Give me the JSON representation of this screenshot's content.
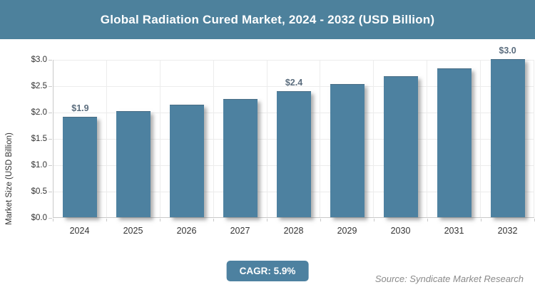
{
  "header": {
    "title": "Global Radiation Cured Market, 2024 - 2032 (USD Billion)"
  },
  "chart_data": {
    "type": "bar",
    "title": "Global Radiation Cured Market, 2024 - 2032 (USD Billion)",
    "categories": [
      "2024",
      "2025",
      "2026",
      "2027",
      "2028",
      "2029",
      "2030",
      "2031",
      "2032"
    ],
    "values": [
      1.9,
      2.01,
      2.13,
      2.25,
      2.39,
      2.53,
      2.68,
      2.83,
      3.0
    ],
    "data_labels": {
      "2024": "$1.9",
      "2028": "$2.4",
      "2032": "$3.0"
    },
    "xlabel": "",
    "ylabel": "Market Size (USD Billion)",
    "ylim": [
      0,
      3.0
    ],
    "ytick_labels": [
      "$0.0",
      "$0.5",
      "$1.0",
      "$1.5",
      "$2.0",
      "$2.5",
      "$3.0"
    ],
    "ytick_values": [
      0,
      0.5,
      1.0,
      1.5,
      2.0,
      2.5,
      3.0
    ],
    "grid": true,
    "legend": "none",
    "colors": {
      "header_bg": "#4d819c",
      "bar_fill": "#4d81a0",
      "data_label": "#5b6d7e",
      "badge_bg": "#4d81a0",
      "gridline": "#ececec",
      "axis_line": "#c9c9c9"
    }
  },
  "footer": {
    "cagr_label": "CAGR: 5.9%",
    "source": "Source: Syndicate Market Research"
  }
}
